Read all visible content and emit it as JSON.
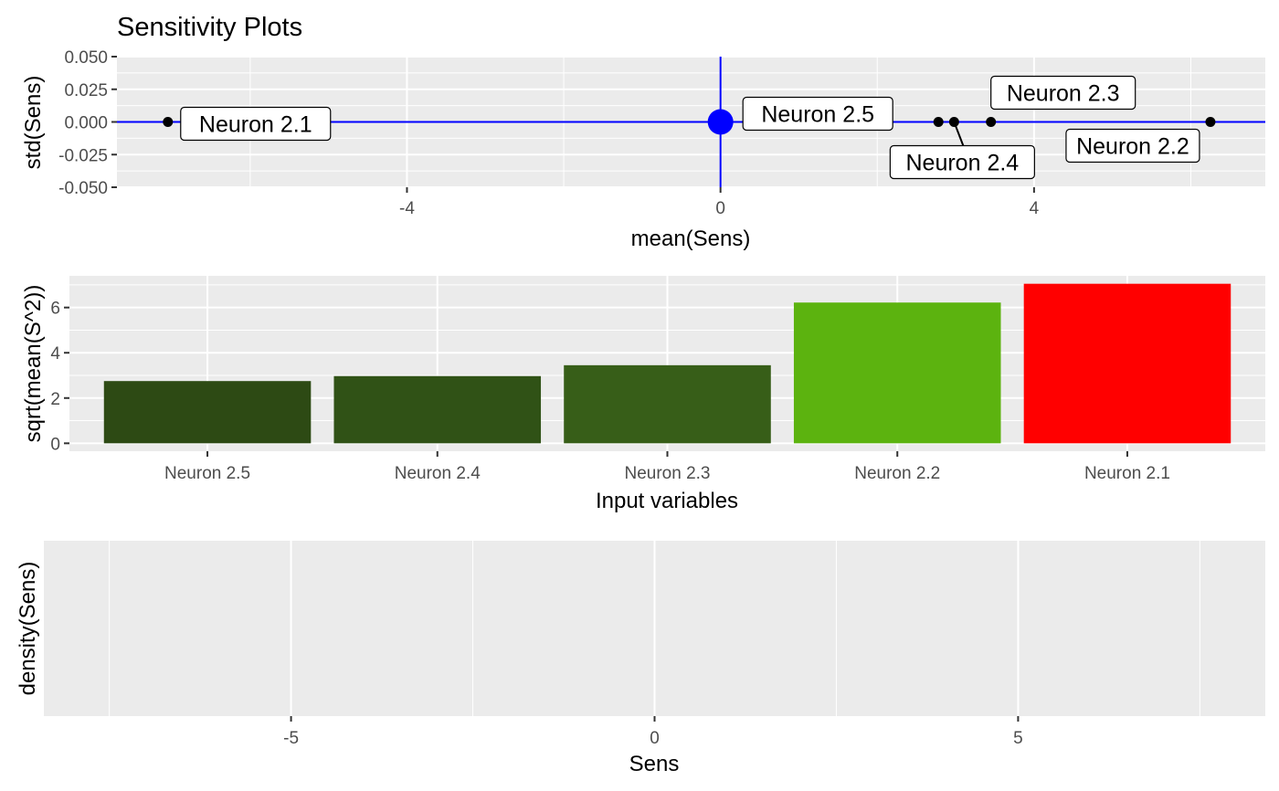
{
  "chart_data": [
    {
      "type": "scatter",
      "title": "Sensitivity Plots",
      "xlabel": "mean(Sens)",
      "ylabel": "std(Sens)",
      "xlim": [
        -7.7,
        6.95
      ],
      "ylim": [
        -0.05,
        0.05
      ],
      "x_ticks": [
        -4,
        0,
        4
      ],
      "x_tick_labels": [
        "-4",
        "0",
        "4"
      ],
      "y_ticks": [
        -0.05,
        -0.025,
        0,
        0.025,
        0.05
      ],
      "y_tick_labels": [
        "-0.050",
        "-0.025",
        "0.000",
        "0.025",
        "0.050"
      ],
      "grid": true,
      "reference_lines": {
        "x": 0,
        "y": 0,
        "color": "#0000ff"
      },
      "origin_marker": {
        "x": 0,
        "y": 0,
        "color": "#0000ff"
      },
      "points": [
        {
          "label": "Neuron 2.1",
          "x": -7.05,
          "y": 0
        },
        {
          "label": "Neuron 2.2",
          "x": 6.25,
          "y": 0
        },
        {
          "label": "Neuron 2.3",
          "x": 3.45,
          "y": 0
        },
        {
          "label": "Neuron 2.4",
          "x": 2.98,
          "y": 0
        },
        {
          "label": "Neuron 2.5",
          "x": 2.78,
          "y": 0
        }
      ]
    },
    {
      "type": "bar",
      "xlabel": "Input variables",
      "ylabel": "sqrt(mean(S^2))",
      "categories": [
        "Neuron 2.5",
        "Neuron 2.4",
        "Neuron 2.3",
        "Neuron 2.2",
        "Neuron 2.1"
      ],
      "values": [
        2.75,
        2.97,
        3.45,
        6.22,
        7.05
      ],
      "colors": [
        "#2d4a14",
        "#305216",
        "#375e18",
        "#5cb30f",
        "#ff0000"
      ],
      "ylim": [
        -0.35,
        7.4
      ],
      "y_ticks": [
        0,
        2,
        4,
        6
      ],
      "y_tick_labels": [
        "0",
        "2",
        "4",
        "6"
      ],
      "grid": true
    },
    {
      "type": "area",
      "xlabel": "Sens",
      "ylabel": "density(Sens)",
      "xlim": [
        -8.4,
        8.4
      ],
      "x_ticks": [
        -5,
        0,
        5
      ],
      "x_tick_labels": [
        "-5",
        "0",
        "5"
      ],
      "grid": true,
      "series": []
    }
  ]
}
